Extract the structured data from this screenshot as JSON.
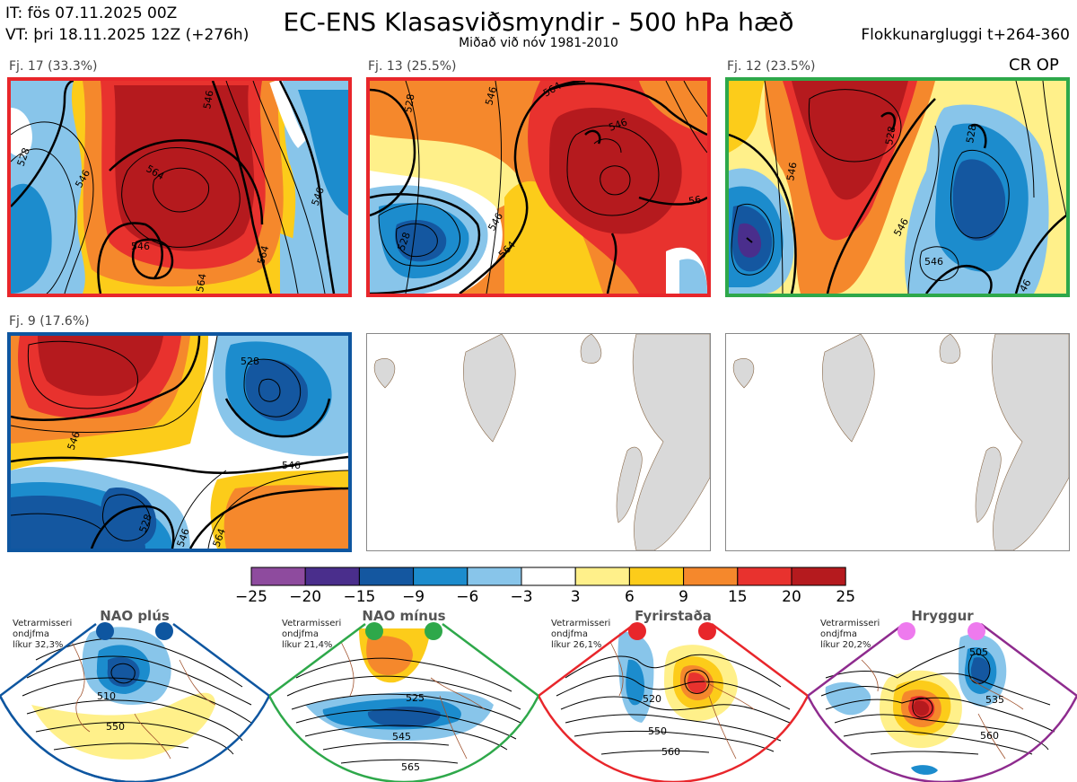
{
  "header": {
    "initial_time": "IT: fös 07.11.2025 00Z",
    "valid_time": "VT: þri 18.11.2025 12Z  (+276h)",
    "title": "EC-ENS Klasasviðsmyndir - 500 hPa hæð",
    "subtitle": "Miðað við nóv 1981-2010",
    "cluster_window": "Flokkunargluggi t+264-360"
  },
  "colors": {
    "border_red": "#e8262b",
    "border_green": "#2ea84a",
    "border_blue": "#0e56a0",
    "border_purple": "#8e2b8e"
  },
  "chart_data": {
    "type": "heatmap",
    "title": "EC-ENS Klasasviðsmyndir - 500 hPa hæð",
    "colorbar": {
      "ticks": [
        "−25",
        "−20",
        "−15",
        "−9",
        "−6",
        "−3",
        "3",
        "6",
        "9",
        "15",
        "20",
        "25"
      ],
      "colors": [
        "#8e4b9e",
        "#4a2e8c",
        "#1457a0",
        "#1c8ccd",
        "#88c5ea",
        "#ffffff",
        "#fff08a",
        "#fccc1a",
        "#f5882c",
        "#e8322e",
        "#b51a1e"
      ]
    },
    "clusters": [
      {
        "id": "fj17",
        "label": "Fj. 17 (33.3%)",
        "members": 17,
        "percent": 33.3,
        "border": "red",
        "contours": [
          "528",
          "546",
          "564",
          "546",
          "546",
          "564",
          "546",
          "564"
        ]
      },
      {
        "id": "fj13",
        "label": "Fj. 13 (25.5%)",
        "members": 13,
        "percent": 25.5,
        "border": "red",
        "contours": [
          "528",
          "546",
          "564",
          "546",
          "528",
          "564",
          "546",
          "56"
        ]
      },
      {
        "id": "fj12",
        "label": "Fj. 12 (23.5%)",
        "members": 12,
        "percent": 23.5,
        "border": "green",
        "extra": "CR OP",
        "contours": [
          "546",
          "528",
          "528",
          "546",
          "46",
          "546"
        ]
      },
      {
        "id": "fj9",
        "label": "Fj. 9 (17.6%)",
        "members": 9,
        "percent": 17.6,
        "border": "blue",
        "contours": [
          "528",
          "546",
          "546",
          "528",
          "546",
          "564"
        ]
      }
    ],
    "regimes": [
      {
        "name": "NAO plús",
        "season": "Vetrarmisseri",
        "mean": "ondjfma",
        "probability": "líkur 32,3%",
        "contours": [
          "510",
          "550"
        ],
        "border": "blue"
      },
      {
        "name": "NAO mínus",
        "season": "Vetrarmisseri",
        "mean": "ondjfma",
        "probability": "líkur 21,4%",
        "contours": [
          "525",
          "545",
          "565"
        ],
        "border": "green"
      },
      {
        "name": "Fyrirstaða",
        "season": "Vetrarmisseri",
        "mean": "ondjfma",
        "probability": "líkur 26,1%",
        "contours": [
          "520",
          "550",
          "560"
        ],
        "border": "red"
      },
      {
        "name": "Hryggur",
        "season": "Vetrarmisseri",
        "mean": "ondjfma",
        "probability": "líkur 20,2%",
        "contours": [
          "505",
          "535",
          "560"
        ],
        "border": "purple"
      }
    ]
  }
}
